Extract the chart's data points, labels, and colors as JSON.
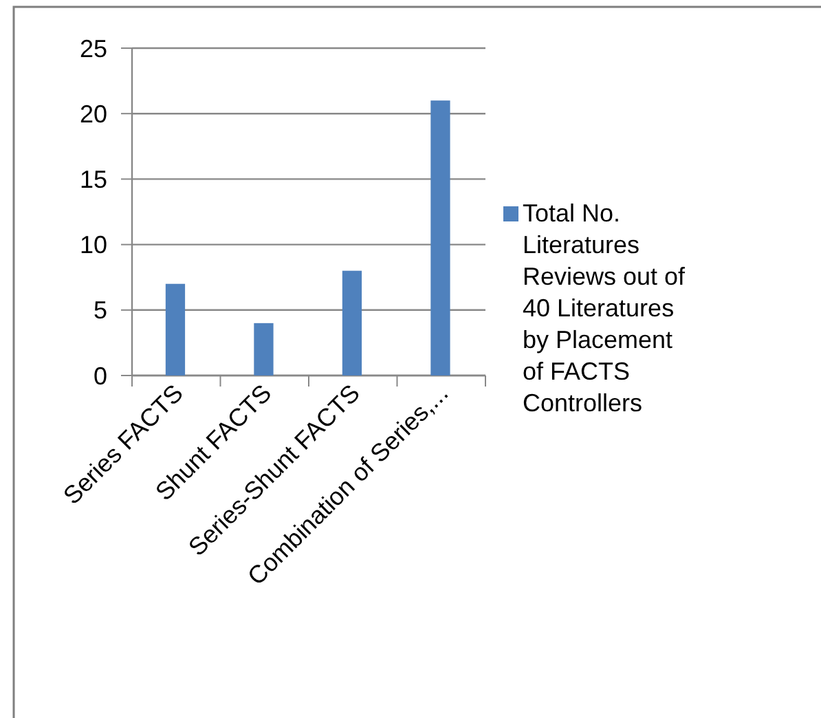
{
  "chart_data": {
    "type": "bar",
    "categories": [
      "Series FACTS",
      "Shunt FACTS",
      "Series-Shunt FACTS",
      "Combination of Series,..."
    ],
    "series": [
      {
        "name": "Total No. Literatures Reviews out of 40 Literatures by Placement of FACTS Controllers",
        "color": "#4f81bd",
        "values": [
          7,
          4,
          8,
          21
        ]
      }
    ],
    "ylim": [
      0,
      25
    ],
    "yticks": [
      0,
      5,
      10,
      15,
      20,
      25
    ],
    "grid": "y",
    "legend": "right"
  }
}
